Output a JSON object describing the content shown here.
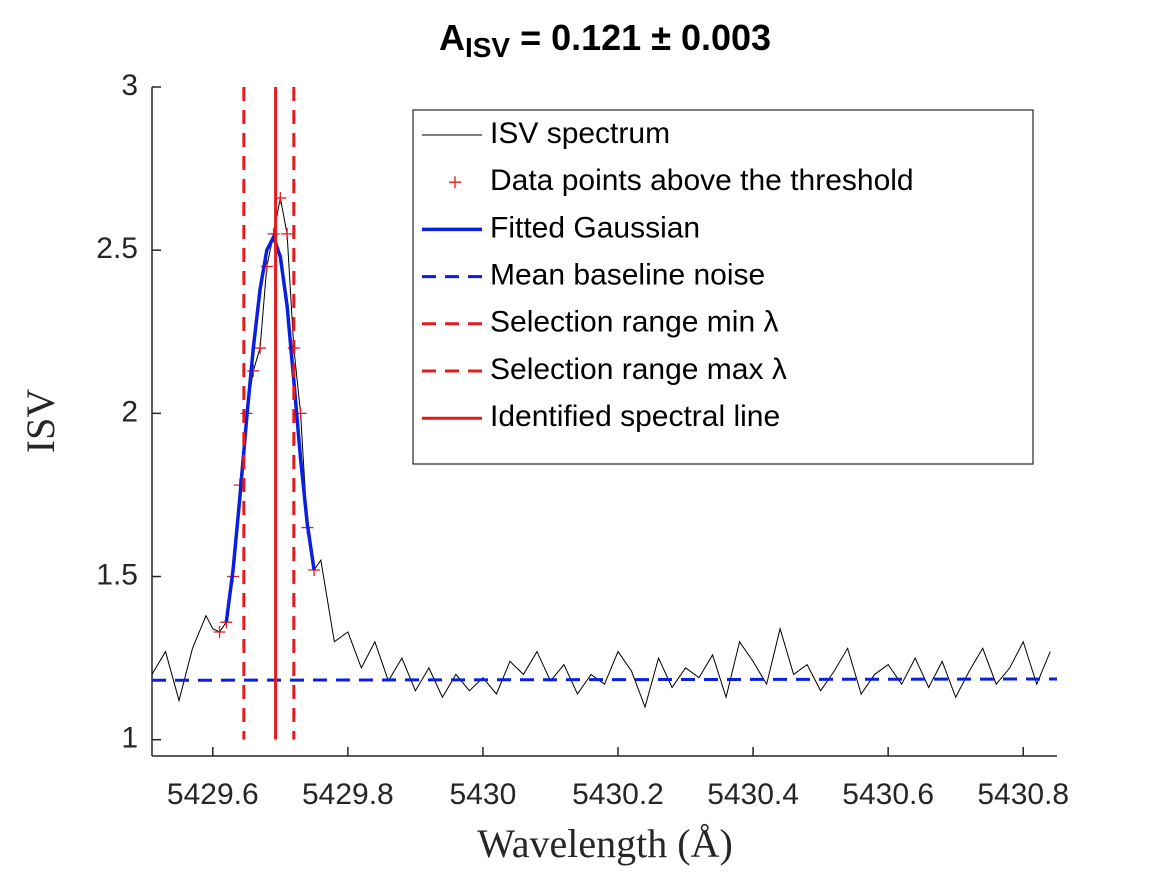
{
  "chart_data": {
    "type": "line",
    "title": "A",
    "title_subscript": "ISV",
    "title_rest": " = 0.121 ± 0.003",
    "x_label": "Wavelength (Å)",
    "y_label": "ISV",
    "xlim": [
      5429.51,
      5430.85
    ],
    "ylim": [
      0.95,
      3
    ],
    "xticks": [
      5429.6,
      5429.8,
      5430,
      5430.2,
      5430.4,
      5430.6,
      5430.8
    ],
    "yticks": [
      1,
      1.5,
      2,
      2.5,
      3
    ],
    "legend": "upper right",
    "series": [
      {
        "name": "ISV spectrum",
        "color": "#000000",
        "style": "line",
        "x": [
          5429.51,
          5429.53,
          5429.55,
          5429.57,
          5429.59,
          5429.6,
          5429.61,
          5429.62,
          5429.63,
          5429.64,
          5429.65,
          5429.66,
          5429.67,
          5429.68,
          5429.69,
          5429.7,
          5429.71,
          5429.72,
          5429.73,
          5429.74,
          5429.75,
          5429.76,
          5429.78,
          5429.8,
          5429.82,
          5429.84,
          5429.86,
          5429.88,
          5429.9,
          5429.92,
          5429.94,
          5429.96,
          5429.98,
          5430,
          5430.02,
          5430.04,
          5430.06,
          5430.08,
          5430.1,
          5430.12,
          5430.14,
          5430.16,
          5430.18,
          5430.2,
          5430.22,
          5430.24,
          5430.26,
          5430.28,
          5430.3,
          5430.32,
          5430.34,
          5430.36,
          5430.38,
          5430.4,
          5430.42,
          5430.44,
          5430.46,
          5430.48,
          5430.5,
          5430.52,
          5430.54,
          5430.56,
          5430.58,
          5430.6,
          5430.62,
          5430.64,
          5430.66,
          5430.68,
          5430.7,
          5430.72,
          5430.74,
          5430.76,
          5430.78,
          5430.8,
          5430.82,
          5430.84
        ],
        "values": [
          1.2,
          1.27,
          1.12,
          1.28,
          1.38,
          1.34,
          1.33,
          1.36,
          1.5,
          1.78,
          2.0,
          2.13,
          2.2,
          2.45,
          2.55,
          2.66,
          2.55,
          2.2,
          2.0,
          1.65,
          1.52,
          1.55,
          1.3,
          1.33,
          1.22,
          1.3,
          1.18,
          1.25,
          1.15,
          1.22,
          1.13,
          1.2,
          1.15,
          1.19,
          1.14,
          1.24,
          1.2,
          1.27,
          1.18,
          1.23,
          1.14,
          1.2,
          1.17,
          1.27,
          1.21,
          1.1,
          1.25,
          1.16,
          1.22,
          1.19,
          1.26,
          1.13,
          1.3,
          1.24,
          1.17,
          1.34,
          1.2,
          1.23,
          1.15,
          1.21,
          1.28,
          1.14,
          1.2,
          1.23,
          1.17,
          1.25,
          1.16,
          1.24,
          1.13,
          1.21,
          1.28,
          1.17,
          1.22,
          1.3,
          1.17,
          1.27
        ]
      },
      {
        "name": "Data points above the threshold",
        "color": "#e41a1c",
        "style": "markers",
        "x": [
          5429.61,
          5429.62,
          5429.63,
          5429.64,
          5429.65,
          5429.66,
          5429.67,
          5429.68,
          5429.69,
          5429.7,
          5429.71,
          5429.72,
          5429.73,
          5429.74,
          5429.75
        ],
        "values": [
          1.33,
          1.36,
          1.5,
          1.78,
          2.0,
          2.13,
          2.2,
          2.45,
          2.55,
          2.66,
          2.55,
          2.2,
          2.0,
          1.65,
          1.52
        ]
      },
      {
        "name": "Fitted Gaussian",
        "color": "#0a1fe0",
        "style": "line",
        "x": [
          5429.62,
          5429.63,
          5429.64,
          5429.65,
          5429.66,
          5429.67,
          5429.68,
          5429.69,
          5429.7,
          5429.71,
          5429.72,
          5429.73,
          5429.74,
          5429.75
        ],
        "values": [
          1.36,
          1.52,
          1.74,
          1.98,
          2.2,
          2.38,
          2.5,
          2.54,
          2.48,
          2.33,
          2.1,
          1.86,
          1.66,
          1.52
        ]
      },
      {
        "name": "Mean baseline noise",
        "color": "#0a1fe0",
        "style": "dashed",
        "x": [
          5429.51,
          5430.85
        ],
        "values": [
          1.182,
          1.186
        ]
      },
      {
        "name": "Selection range min λ",
        "color": "#e41a1c",
        "style": "dashed-vline",
        "x": 5429.646
      },
      {
        "name": "Selection range max λ",
        "color": "#e41a1c",
        "style": "dashed-vline",
        "x": 5429.72
      },
      {
        "name": "Identified spectral line",
        "color": "#e41a1c",
        "style": "vline",
        "x": 5429.693
      }
    ]
  }
}
